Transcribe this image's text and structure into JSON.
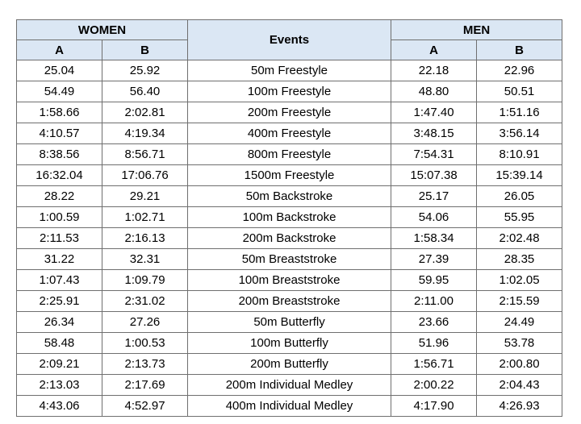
{
  "header": {
    "women": "WOMEN",
    "events": "Events",
    "men": "MEN",
    "a": "A",
    "b": "B"
  },
  "rows": [
    {
      "women_a": "25.04",
      "women_b": "25.92",
      "event": "50m Freestyle",
      "men_a": "22.18",
      "men_b": "22.96"
    },
    {
      "women_a": "54.49",
      "women_b": "56.40",
      "event": "100m Freestyle",
      "men_a": "48.80",
      "men_b": "50.51"
    },
    {
      "women_a": "1:58.66",
      "women_b": "2:02.81",
      "event": "200m Freestyle",
      "men_a": "1:47.40",
      "men_b": "1:51.16"
    },
    {
      "women_a": "4:10.57",
      "women_b": "4:19.34",
      "event": "400m Freestyle",
      "men_a": "3:48.15",
      "men_b": "3:56.14"
    },
    {
      "women_a": "8:38.56",
      "women_b": "8:56.71",
      "event": "800m Freestyle",
      "men_a": "7:54.31",
      "men_b": "8:10.91"
    },
    {
      "women_a": "16:32.04",
      "women_b": "17:06.76",
      "event": "1500m Freestyle",
      "men_a": "15:07.38",
      "men_b": "15:39.14"
    },
    {
      "women_a": "28.22",
      "women_b": "29.21",
      "event": "50m Backstroke",
      "men_a": "25.17",
      "men_b": "26.05"
    },
    {
      "women_a": "1:00.59",
      "women_b": "1:02.71",
      "event": "100m Backstroke",
      "men_a": "54.06",
      "men_b": "55.95"
    },
    {
      "women_a": "2:11.53",
      "women_b": "2:16.13",
      "event": "200m Backstroke",
      "men_a": "1:58.34",
      "men_b": "2:02.48"
    },
    {
      "women_a": "31.22",
      "women_b": "32.31",
      "event": "50m Breaststroke",
      "men_a": "27.39",
      "men_b": "28.35"
    },
    {
      "women_a": "1:07.43",
      "women_b": "1:09.79",
      "event": "100m Breaststroke",
      "men_a": "59.95",
      "men_b": "1:02.05"
    },
    {
      "women_a": "2:25.91",
      "women_b": "2:31.02",
      "event": "200m Breaststroke",
      "men_a": "2:11.00",
      "men_b": "2:15.59"
    },
    {
      "women_a": "26.34",
      "women_b": "27.26",
      "event": "50m Butterfly",
      "men_a": "23.66",
      "men_b": "24.49"
    },
    {
      "women_a": "58.48",
      "women_b": "1:00.53",
      "event": "100m Butterfly",
      "men_a": "51.96",
      "men_b": "53.78"
    },
    {
      "women_a": "2:09.21",
      "women_b": "2:13.73",
      "event": "200m Butterfly",
      "men_a": "1:56.71",
      "men_b": "2:00.80"
    },
    {
      "women_a": "2:13.03",
      "women_b": "2:17.69",
      "event": "200m Individual Medley",
      "men_a": "2:00.22",
      "men_b": "2:04.43"
    },
    {
      "women_a": "4:43.06",
      "women_b": "4:52.97",
      "event": "400m Individual Medley",
      "men_a": "4:17.90",
      "men_b": "4:26.93"
    }
  ],
  "colors": {
    "header_bg": "#dbe7f4",
    "border": "#6f6f6f"
  }
}
